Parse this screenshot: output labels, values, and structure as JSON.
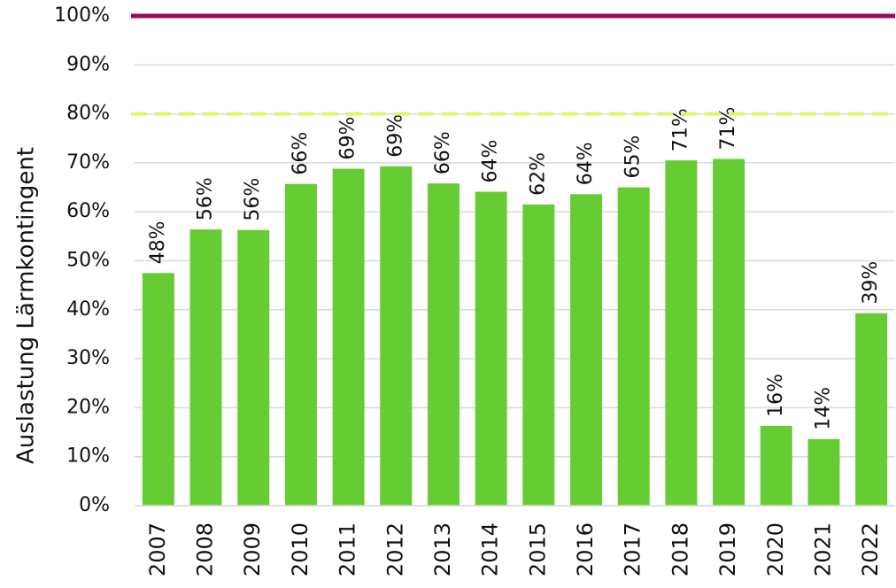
{
  "chart_data": {
    "type": "bar",
    "y_label": "Auslastung Lärmkontingent",
    "categories": [
      "2007",
      "2008",
      "2009",
      "2010",
      "2011",
      "2012",
      "2013",
      "2014",
      "2015",
      "2016",
      "2017",
      "2018",
      "2019",
      "2020",
      "2021",
      "2022"
    ],
    "values": [
      47.5,
      56.4,
      56.3,
      65.7,
      68.8,
      69.3,
      65.8,
      64.1,
      61.5,
      63.6,
      65.0,
      70.5,
      70.8,
      16.3,
      13.6,
      39.3
    ],
    "value_labels": [
      "48%",
      "56%",
      "56%",
      "66%",
      "69%",
      "69%",
      "66%",
      "64%",
      "62%",
      "64%",
      "65%",
      "71%",
      "71%",
      "16%",
      "14%",
      "39%"
    ],
    "color": "#66cc33",
    "ylim": [
      0,
      100
    ],
    "yticks": [
      {
        "value": 0,
        "label": "0%"
      },
      {
        "value": 10,
        "label": "10%"
      },
      {
        "value": 20,
        "label": "20%"
      },
      {
        "value": 30,
        "label": "30%"
      },
      {
        "value": 40,
        "label": "40%"
      },
      {
        "value": 50,
        "label": "50%"
      },
      {
        "value": 60,
        "label": "60%"
      },
      {
        "value": 70,
        "label": "70%"
      },
      {
        "value": 80,
        "label": "80%"
      },
      {
        "value": 90,
        "label": "90%"
      },
      {
        "value": 100,
        "label": "100%"
      }
    ],
    "grid": true,
    "reference_lines": [
      {
        "value": 100,
        "color": "#990a63",
        "style": "solid"
      },
      {
        "value": 80,
        "color": "#e2f766",
        "style": "dashed"
      }
    ]
  }
}
